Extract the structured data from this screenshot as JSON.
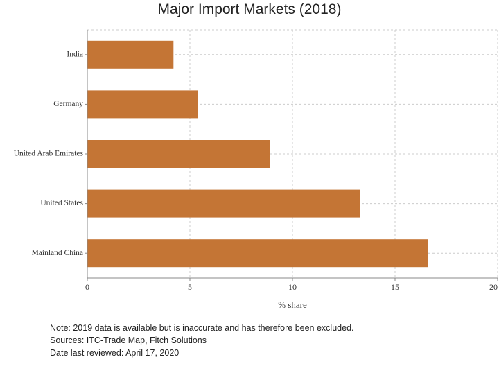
{
  "chart_data": {
    "type": "bar",
    "orientation": "horizontal",
    "title": "Major Import Markets (2018)",
    "categories": [
      "India",
      "Germany",
      "United Arab Emirates",
      "United States",
      "Mainland China"
    ],
    "values": [
      4.2,
      5.4,
      8.9,
      13.3,
      16.6
    ],
    "xlabel": "% share",
    "ylabel": "",
    "xlim": [
      0,
      20
    ],
    "xticks": [
      0,
      5,
      10,
      15,
      20
    ],
    "grid": true,
    "bar_color": "#c47535"
  },
  "notes": {
    "note": "Note: 2019 data is available but is inaccurate and has therefore been excluded.",
    "sources": "Sources: ITC-Trade Map, Fitch Solutions",
    "reviewed": "Date last reviewed: April 17, 2020"
  }
}
